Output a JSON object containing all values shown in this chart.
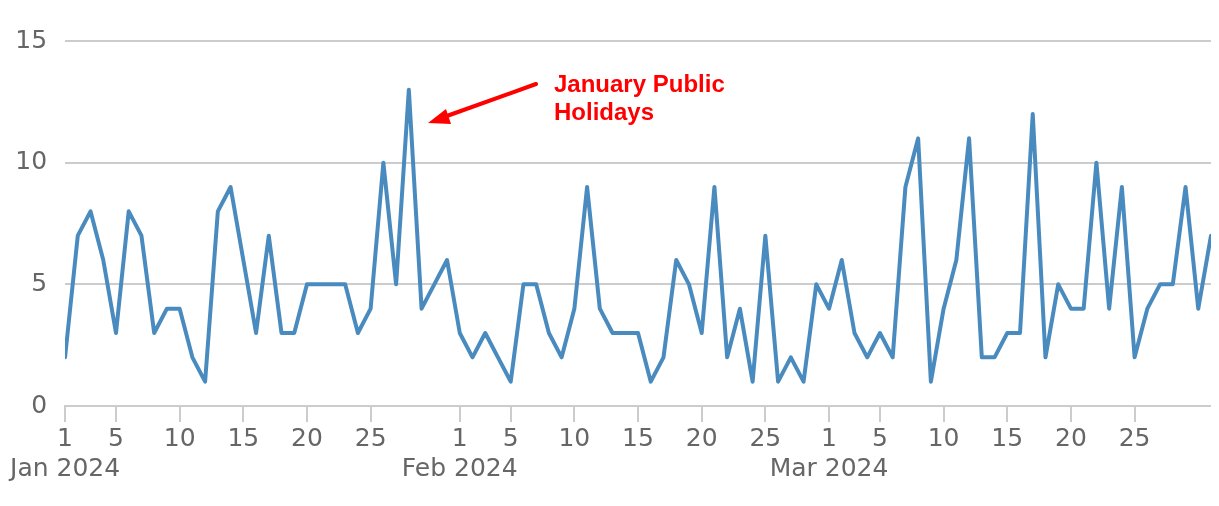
{
  "chart_data": {
    "type": "line",
    "x": [
      "2024-01-01",
      "2024-01-02",
      "2024-01-03",
      "2024-01-04",
      "2024-01-05",
      "2024-01-06",
      "2024-01-07",
      "2024-01-08",
      "2024-01-09",
      "2024-01-10",
      "2024-01-11",
      "2024-01-12",
      "2024-01-13",
      "2024-01-14",
      "2024-01-15",
      "2024-01-16",
      "2024-01-17",
      "2024-01-18",
      "2024-01-19",
      "2024-01-20",
      "2024-01-21",
      "2024-01-22",
      "2024-01-23",
      "2024-01-24",
      "2024-01-25",
      "2024-01-26",
      "2024-01-27",
      "2024-01-28",
      "2024-01-29",
      "2024-01-30",
      "2024-01-31",
      "2024-02-01",
      "2024-02-02",
      "2024-02-03",
      "2024-02-04",
      "2024-02-05",
      "2024-02-06",
      "2024-02-07",
      "2024-02-08",
      "2024-02-09",
      "2024-02-10",
      "2024-02-11",
      "2024-02-12",
      "2024-02-13",
      "2024-02-14",
      "2024-02-15",
      "2024-02-16",
      "2024-02-17",
      "2024-02-18",
      "2024-02-19",
      "2024-02-20",
      "2024-02-21",
      "2024-02-22",
      "2024-02-23",
      "2024-02-24",
      "2024-02-25",
      "2024-02-26",
      "2024-02-27",
      "2024-02-28",
      "2024-02-29",
      "2024-03-01",
      "2024-03-02",
      "2024-03-03",
      "2024-03-04",
      "2024-03-05",
      "2024-03-06",
      "2024-03-07",
      "2024-03-08",
      "2024-03-09",
      "2024-03-10",
      "2024-03-11",
      "2024-03-12",
      "2024-03-13",
      "2024-03-14",
      "2024-03-15",
      "2024-03-16",
      "2024-03-17",
      "2024-03-18",
      "2024-03-19",
      "2024-03-20",
      "2024-03-21",
      "2024-03-22",
      "2024-03-23",
      "2024-03-24",
      "2024-03-25",
      "2024-03-26",
      "2024-03-27",
      "2024-03-28",
      "2024-03-29",
      "2024-03-30",
      "2024-03-31"
    ],
    "series": [
      {
        "color": "#4a8bbf",
        "values": [
          2,
          7,
          8,
          6,
          3,
          8,
          7,
          3,
          4,
          4,
          2,
          1,
          8,
          9,
          6,
          3,
          7,
          3,
          3,
          5,
          5,
          5,
          5,
          3,
          4,
          10,
          5,
          13,
          4,
          5,
          6,
          3,
          2,
          3,
          2,
          1,
          5,
          5,
          3,
          2,
          4,
          9,
          4,
          3,
          3,
          3,
          1,
          2,
          6,
          5,
          3,
          9,
          2,
          4,
          1,
          7,
          1,
          2,
          1,
          5,
          4,
          6,
          3,
          2,
          3,
          2,
          9,
          11,
          1,
          4,
          6,
          11,
          2,
          2,
          3,
          3,
          12,
          2,
          5,
          4,
          4,
          10,
          4,
          9,
          2,
          4,
          5,
          5,
          9,
          4,
          7
        ]
      }
    ],
    "xlim": [
      "2024-01-01",
      "2024-03-31"
    ],
    "xticks": [
      {
        "value": "2024-01-01",
        "label": "1\nJan 2024"
      },
      {
        "value": "2024-01-05",
        "label": "5"
      },
      {
        "value": "2024-01-10",
        "label": "10"
      },
      {
        "value": "2024-01-15",
        "label": "15"
      },
      {
        "value": "2024-01-20",
        "label": "20"
      },
      {
        "value": "2024-01-25",
        "label": "25"
      },
      {
        "value": "2024-02-01",
        "label": "1\nFeb 2024"
      },
      {
        "value": "2024-02-05",
        "label": "5"
      },
      {
        "value": "2024-02-10",
        "label": "10"
      },
      {
        "value": "2024-02-15",
        "label": "15"
      },
      {
        "value": "2024-02-20",
        "label": "20"
      },
      {
        "value": "2024-02-25",
        "label": "25"
      },
      {
        "value": "2024-03-01",
        "label": "1\nMar 2024"
      },
      {
        "value": "2024-03-05",
        "label": "5"
      },
      {
        "value": "2024-03-10",
        "label": "10"
      },
      {
        "value": "2024-03-15",
        "label": "15"
      },
      {
        "value": "2024-03-20",
        "label": "20"
      },
      {
        "value": "2024-03-25",
        "label": "25"
      }
    ],
    "ylim": [
      0,
      15
    ],
    "yticks": [
      0,
      5,
      10,
      15
    ],
    "grid": "y",
    "legend": false,
    "marker": "none",
    "line_style": "solid",
    "annotations": [
      "January Public Holidays"
    ]
  }
}
